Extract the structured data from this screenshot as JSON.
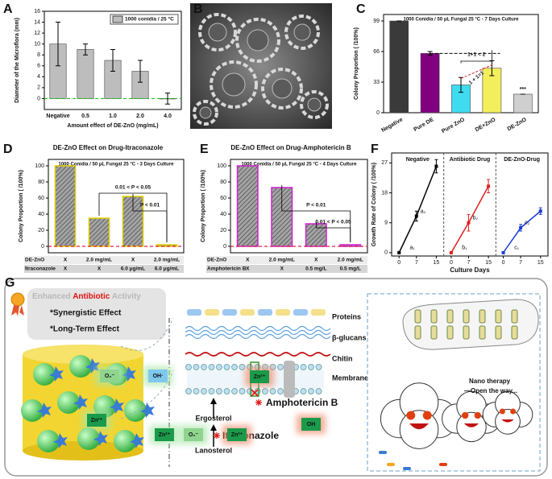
{
  "panel_labels": [
    "A",
    "B",
    "C",
    "D",
    "E",
    "F",
    "G"
  ],
  "chart_data": [
    {
      "type": "bar",
      "ylabel": "Diameter of the Microflora (mm)",
      "xlabel": "Amount effect of DE-ZnO (mg/mL)",
      "categories": [
        "Negative",
        "0.5",
        "1.0",
        "2.0",
        "4.0"
      ],
      "series": [
        {
          "name": "1000 conidia / 25 °C",
          "color": "#bdbdbd",
          "values": [
            10,
            9,
            7,
            5,
            0
          ],
          "errors": [
            4,
            1,
            2,
            2,
            1
          ]
        }
      ],
      "ylim": [
        -2,
        16
      ],
      "yticks": [
        0,
        2,
        4,
        6,
        8,
        10,
        12,
        14,
        16
      ]
    },
    {
      "type": "bar",
      "subtitle": "1000 Conidia / 50 μL Fungal  25 °C - 7 Days Culture",
      "ylabel": "Colony Proportion ( /100%)",
      "categories": [
        "Negative",
        "Pure DE",
        "Pure ZnO",
        "DE+ZnO",
        "DE-ZnO"
      ],
      "series": [
        {
          "colors": [
            "#3a3a3a",
            "#800080",
            "#3fdcf0",
            "#f3ee5c",
            "#cfcfcf"
          ],
          "values": [
            99,
            64,
            30,
            48,
            20
          ],
          "errors": [
            0,
            2,
            8,
            8,
            0
          ]
        }
      ],
      "annotations": [
        "1+1 < 2",
        "1 + 1=1",
        "***"
      ],
      "ylim": [
        0,
        106
      ],
      "yticks": [
        0,
        33,
        66,
        99
      ]
    },
    {
      "type": "bar",
      "title": "DE-ZnO Effect on Drug-Itraconazole",
      "subtitle": "1000 Conidia / 50 μL Fungal  25 °C - 3 Days Culture",
      "ylabel": "Colony Proportion ( /100%)",
      "series": [
        {
          "color": "#9a9a9a",
          "edgecolor": "#e0d000",
          "values": [
            100,
            35,
            62,
            2
          ]
        }
      ],
      "annotations": [
        "0.01 < P < 0.05",
        "P < 0.01"
      ],
      "table": {
        "rows": [
          {
            "label": "DE-ZnO",
            "cells": [
              "X",
              "2.0 mg/mL",
              "X",
              "2.0 mg/mL"
            ]
          },
          {
            "label": "Itraconazole",
            "cells": [
              "X",
              "X",
              "6.0 μg/mL",
              "6.0 μg/mL"
            ]
          }
        ]
      },
      "ylim": [
        -8,
        108
      ],
      "yticks": [
        0,
        20,
        40,
        60,
        80,
        100
      ]
    },
    {
      "type": "bar",
      "title": "DE-ZnO Effect on Drug-Amphotericin B",
      "subtitle": "1000 Conidia / 50 μL Fungal  25 °C - 4 Days Culture",
      "ylabel": "Colony Proportion ( /100%)",
      "series": [
        {
          "color": "#9a9a9a",
          "edgecolor": "#d020d0",
          "values": [
            100,
            73,
            28,
            2
          ]
        }
      ],
      "annotations": [
        "P < 0.01",
        "0.01 < P < 0.05"
      ],
      "table": {
        "rows": [
          {
            "label": "DE-ZnO",
            "cells": [
              "X",
              "2.0 mg/mL",
              "X",
              "2.0 mg/mL"
            ]
          },
          {
            "label": "Amphotericin B",
            "cells": [
              "X",
              "X",
              "0.5 mg/L",
              "0.5 mg/L"
            ]
          }
        ]
      },
      "ylim": [
        -8,
        108
      ],
      "yticks": [
        0,
        20,
        40,
        60,
        80,
        100
      ]
    },
    {
      "type": "line",
      "ylabel": "Growth Rate of Colony ( /100%)",
      "xlabel": "Culture Days",
      "x": [
        0,
        7,
        15
      ],
      "xticks": [
        0,
        7,
        15
      ],
      "xlim": [
        -3,
        18
      ],
      "series": [
        {
          "name": "Negative",
          "color": "#000000",
          "values": [
            0,
            11,
            26
          ],
          "errors": [
            0,
            1.5,
            2
          ],
          "point_labels": [
            "a₁",
            "a₂"
          ]
        },
        {
          "name": "Antibiotic Drug",
          "color": "#e02020",
          "values": [
            0,
            9,
            20
          ],
          "errors": [
            0,
            2.5,
            2
          ],
          "point_labels": [
            "b₁",
            "b₂"
          ]
        },
        {
          "name": "DE-ZnO-Drug",
          "color": "#1a3ad8",
          "values": [
            0,
            7.5,
            12.5
          ],
          "errors": [
            0,
            1,
            1
          ],
          "point_labels": [
            "c₁",
            "c₂"
          ]
        }
      ],
      "ylim": [
        -1,
        30
      ],
      "yticks": [
        0,
        9,
        18,
        27
      ]
    }
  ],
  "diagram": {
    "headline": [
      "Enhanced ",
      "Antibiotic",
      " Activity"
    ],
    "effects": [
      "*Synergistic Effect",
      "*Long-Term Effect"
    ],
    "layers": [
      "Proteins",
      "β-glucans",
      "Chitin",
      "Membrane"
    ],
    "pathway": [
      "Ergosterol",
      "Lanosterol"
    ],
    "drugs": [
      "Amphotericin B",
      "Itraconazole"
    ],
    "ions": [
      "O₂⁻",
      "OH·",
      "Zn²⁺",
      "Zn²⁺",
      "O₂⁻",
      "Zn²⁺",
      "Zn²⁺",
      "OH"
    ],
    "nano": [
      "Nano therapy",
      "—Open the way..."
    ]
  }
}
